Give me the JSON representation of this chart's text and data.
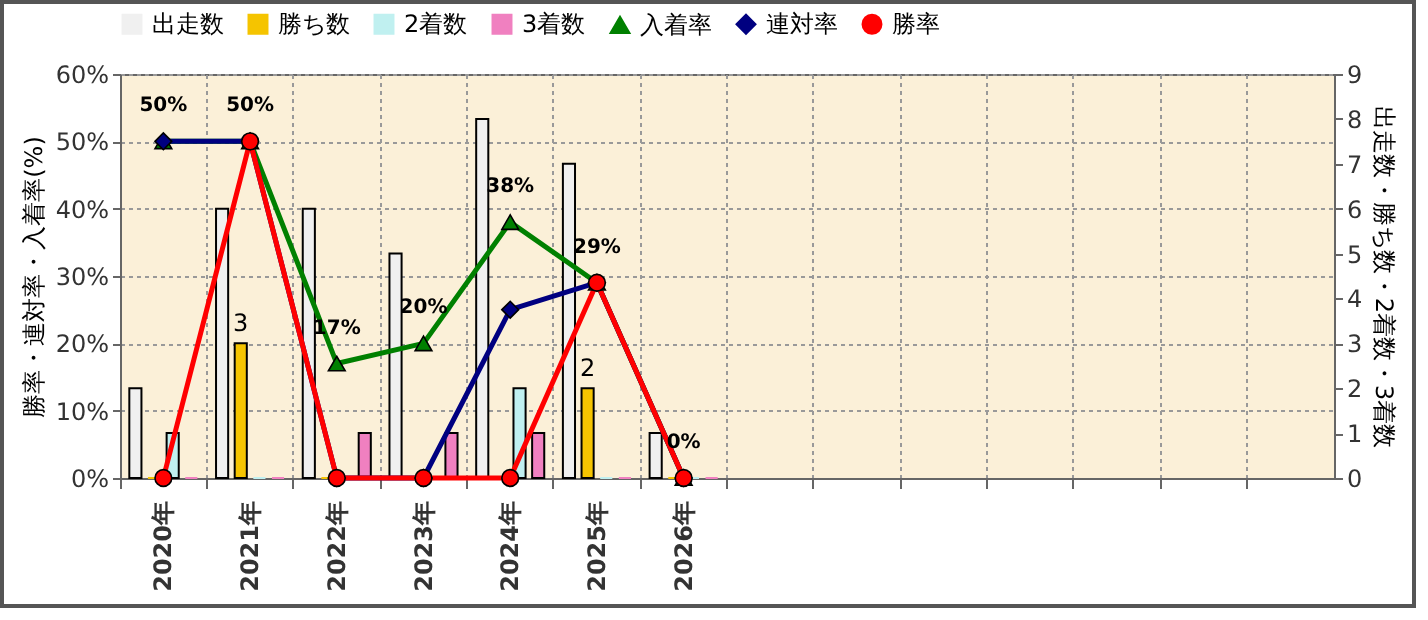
{
  "chart_data": {
    "type": "bar",
    "categories": [
      "2020年",
      "2021年",
      "2022年",
      "2023年",
      "2024年",
      "2025年",
      "2026年",
      null,
      null,
      null,
      null,
      null,
      null,
      null
    ],
    "series": [
      {
        "name": "出走数",
        "axis": "y2",
        "color": "#f0f0f0",
        "values": [
          2,
          6,
          6,
          5,
          8,
          7,
          1,
          null,
          null,
          null,
          null,
          null,
          null,
          null
        ]
      },
      {
        "name": "勝ち数",
        "axis": "y2",
        "color": "#f5c400",
        "values": [
          0,
          3,
          0,
          0,
          0,
          2,
          0,
          null,
          null,
          null,
          null,
          null,
          null,
          null
        ],
        "value_labels": [
          null,
          "3",
          null,
          null,
          null,
          "2",
          null,
          null,
          null,
          null,
          null,
          null,
          null,
          null
        ]
      },
      {
        "name": "2着数",
        "axis": "y2",
        "color": "#c0f0f0",
        "values": [
          1,
          0,
          0,
          0,
          2,
          0,
          0,
          null,
          null,
          null,
          null,
          null,
          null,
          null
        ]
      },
      {
        "name": "3着数",
        "axis": "y2",
        "color": "#f080c0",
        "values": [
          0,
          0,
          1,
          1,
          1,
          0,
          0,
          null,
          null,
          null,
          null,
          null,
          null,
          null
        ]
      },
      {
        "name": "入着率",
        "type": "line",
        "marker": "triangle",
        "color": "#008000",
        "values": [
          50,
          50,
          17,
          20,
          38,
          29,
          0,
          null,
          null,
          null,
          null,
          null,
          null,
          null
        ],
        "value_labels": [
          "50%",
          "50%",
          "17%",
          "20%",
          "38%",
          "29%",
          "0%",
          null,
          null,
          null,
          null,
          null,
          null,
          null
        ]
      },
      {
        "name": "連対率",
        "type": "line",
        "marker": "diamond",
        "color": "#000080",
        "values": [
          50,
          50,
          0,
          0,
          25,
          29,
          0,
          null,
          null,
          null,
          null,
          null,
          null,
          null
        ]
      },
      {
        "name": "勝率",
        "type": "line",
        "marker": "circle",
        "color": "#ff0000",
        "values": [
          0,
          50,
          0,
          0,
          0,
          29,
          0,
          null,
          null,
          null,
          null,
          null,
          null,
          null
        ]
      }
    ],
    "ylabel": "勝率・連対率・入着率(%)",
    "y2label": "出走数・勝ち数・2着数・3着数",
    "ylim": [
      0,
      60
    ],
    "yticks": [
      {
        "value": 0,
        "label": "0%"
      },
      {
        "value": 10,
        "label": "10%"
      },
      {
        "value": 20,
        "label": "20%"
      },
      {
        "value": 30,
        "label": "30%"
      },
      {
        "value": 40,
        "label": "40%"
      },
      {
        "value": 50,
        "label": "50%"
      },
      {
        "value": 60,
        "label": "60%"
      }
    ],
    "y2lim": [
      0,
      9
    ],
    "y2ticks": [
      0,
      1,
      2,
      3,
      4,
      5,
      6,
      7,
      8,
      9
    ],
    "grid": true,
    "legend": "top"
  }
}
